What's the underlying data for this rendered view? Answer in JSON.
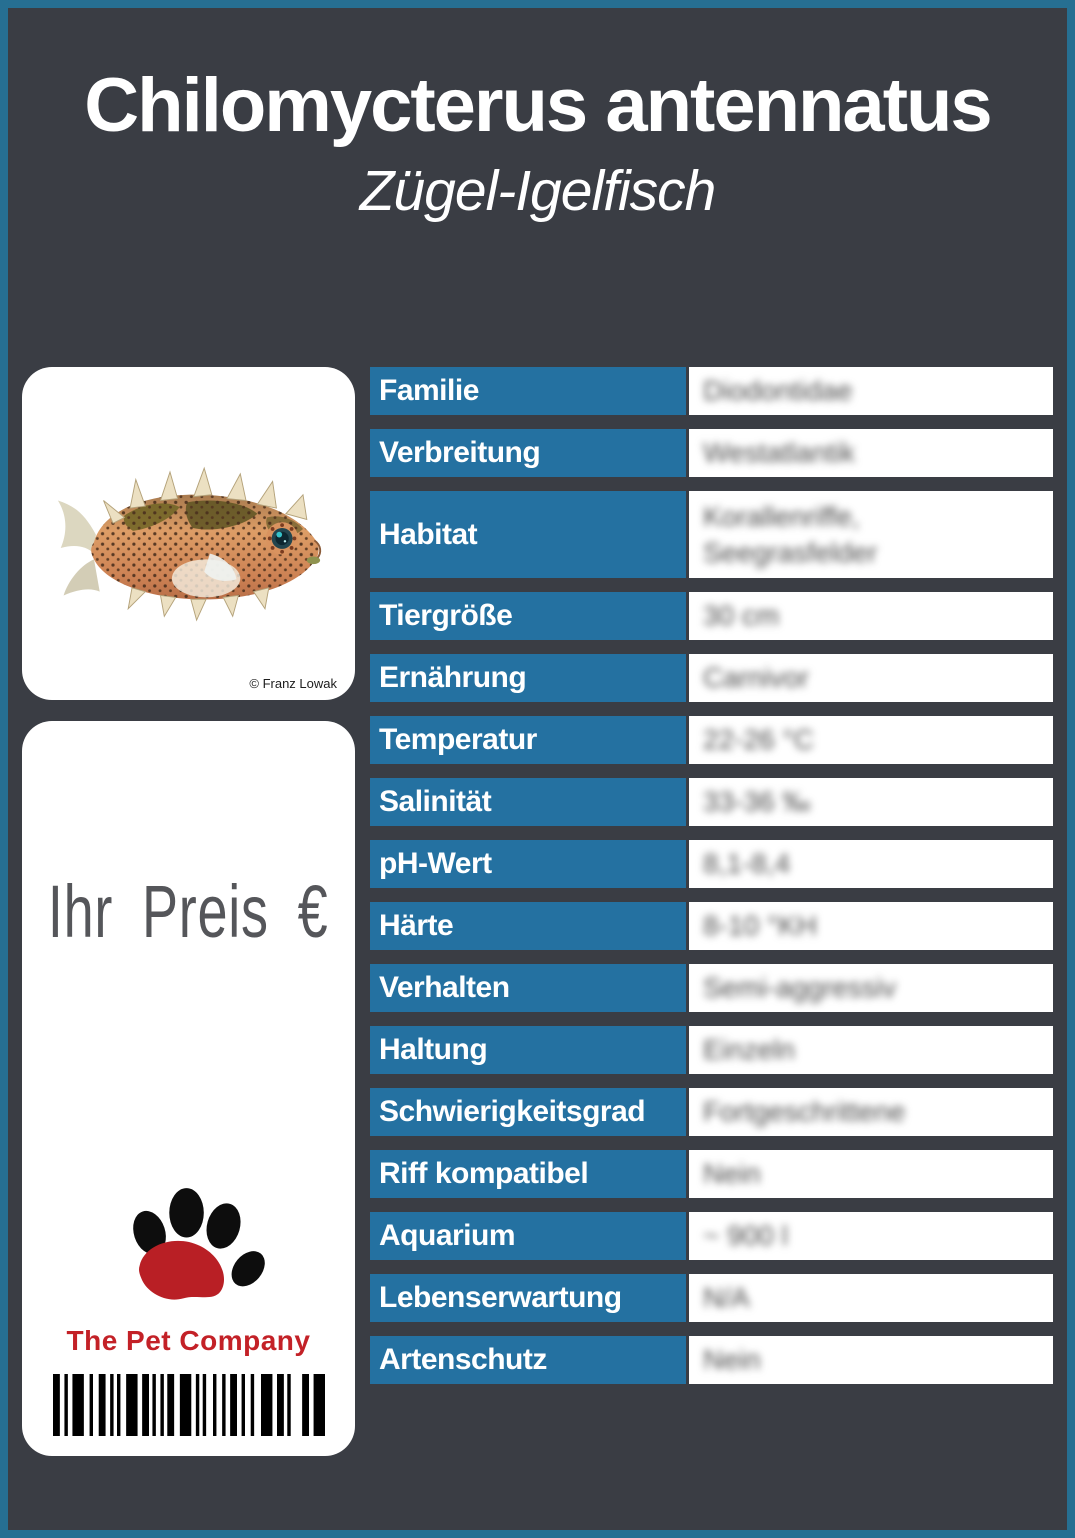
{
  "header": {
    "title": "Chilomycterus antennatus",
    "subtitle": "Zügel-Igelfisch"
  },
  "photo": {
    "credit": "© Franz Lowak"
  },
  "price": {
    "label": "Ihr Preis €"
  },
  "brand": {
    "company": "The Pet Company"
  },
  "colors": {
    "frame_teal": "#266f92",
    "background_dark": "#3a3d44",
    "row_label_blue": "#2471a1",
    "brand_red": "#c32127",
    "value_text_gray": "#4c4c4c"
  },
  "table": {
    "rows": [
      {
        "label": "Familie",
        "value": "Diodontidae"
      },
      {
        "label": "Verbreitung",
        "value": "Westatlantik"
      },
      {
        "label": "Habitat",
        "value": "Korallenriffe,\nSeegrasfelder"
      },
      {
        "label": "Tiergröße",
        "value": "30 cm"
      },
      {
        "label": "Ernährung",
        "value": "Carnivor"
      },
      {
        "label": "Temperatur",
        "value": "22-26 °C"
      },
      {
        "label": "Salinität",
        "value": "33-36 ‰"
      },
      {
        "label": "pH-Wert",
        "value": "8,1-8,4"
      },
      {
        "label": "Härte",
        "value": "8-10 °KH"
      },
      {
        "label": "Verhalten",
        "value": "Semi-aggressiv"
      },
      {
        "label": "Haltung",
        "value": "Einzeln"
      },
      {
        "label": "Schwierigkeitsgrad",
        "value": "Fortgeschrittene"
      },
      {
        "label": "Riff kompatibel",
        "value": "Nein"
      },
      {
        "label": "Aquarium",
        "value": "~ 900 l"
      },
      {
        "label": "Lebenserwartung",
        "value": "N/A"
      },
      {
        "label": "Artenschutz",
        "value": "Nein"
      }
    ]
  },
  "barcode": {
    "pattern": [
      6,
      4,
      3,
      4,
      10,
      5,
      3,
      5,
      6,
      4,
      3,
      3,
      3,
      5,
      10,
      4,
      6,
      3,
      3,
      4,
      3,
      3,
      6,
      5,
      10,
      4,
      3,
      3,
      3,
      6,
      3,
      5,
      3,
      4,
      6,
      4,
      3,
      5,
      3,
      6,
      10,
      4,
      6,
      3,
      3,
      10,
      6,
      4,
      10
    ]
  }
}
